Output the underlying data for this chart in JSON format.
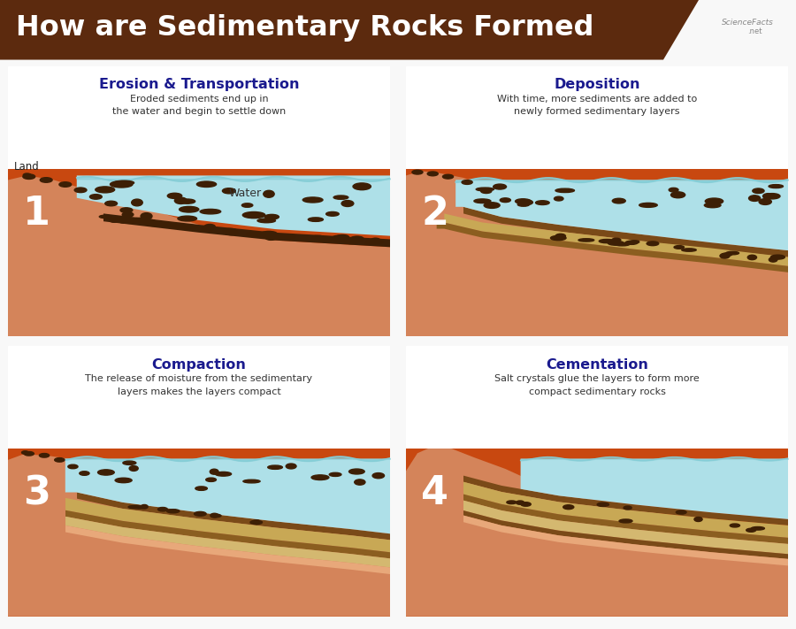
{
  "title": "How are Sedimentary Rocks Formed",
  "title_bg": "#5c2a0e",
  "title_color": "#ffffff",
  "bg_color": "#f5f5f5",
  "subtitle_color": "#1a1a8e",
  "desc_color": "#333333",
  "panels": [
    {
      "num": "1",
      "title": "Erosion & Transportation",
      "desc": "Eroded sediments end up in\nthe water and begin to settle down",
      "land_label": "Land",
      "water_label": "Water",
      "type": "erosion"
    },
    {
      "num": "2",
      "title": "Deposition",
      "desc": "With time, more sediments are added to\nnewly formed sedimentary layers",
      "land_label": "",
      "water_label": "",
      "type": "deposition"
    },
    {
      "num": "3",
      "title": "Compaction",
      "desc": "The release of moisture from the sedimentary\nlayers makes the layers compact",
      "land_label": "",
      "water_label": "",
      "type": "compaction"
    },
    {
      "num": "4",
      "title": "Cementation",
      "desc": "Salt crystals glue the layers to form more\ncompact sedimentary rocks",
      "land_label": "",
      "water_label": "",
      "type": "cementation"
    }
  ],
  "colors": {
    "red_brown": "#c84810",
    "light_brown": "#d4845a",
    "peach": "#e8a87a",
    "water": "#aee0e8",
    "water_dark": "#85cdd6",
    "dark_brown": "#7a4a18",
    "mid_brown": "#8b5e20",
    "sediment_dark": "#3d2007",
    "tan": "#c8a855",
    "tan_light": "#d4b870",
    "pebble": "#3d1f05"
  }
}
